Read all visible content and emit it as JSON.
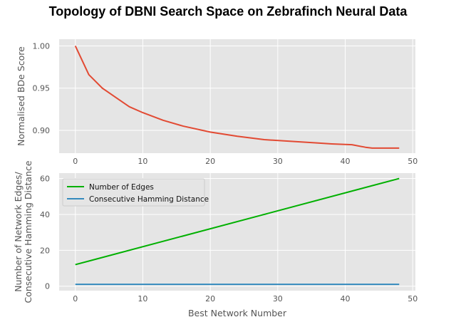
{
  "title": "Topology of DBNI Search Space on Zebrafinch Neural Data",
  "chart_data": [
    {
      "type": "line",
      "ylabel": "Normalised BDe Score",
      "xlabel": "",
      "xlim": [
        -2.4,
        50.4
      ],
      "ylim": [
        0.873,
        1.008
      ],
      "xticks": [
        0,
        10,
        20,
        30,
        40,
        50
      ],
      "yticks": [
        0.9,
        0.95,
        1.0
      ],
      "ytick_labels": [
        "0.90",
        "0.95",
        "1.00"
      ],
      "grid": true,
      "series": [
        {
          "color": "#e24a33",
          "x": [
            0,
            2,
            4,
            6,
            8,
            10,
            13,
            16,
            20,
            24,
            28,
            32,
            36,
            38,
            41,
            43,
            44,
            46,
            48
          ],
          "y": [
            1.0,
            0.966,
            0.95,
            0.939,
            0.928,
            0.921,
            0.912,
            0.905,
            0.898,
            0.893,
            0.889,
            0.887,
            0.885,
            0.884,
            0.883,
            0.88,
            0.879,
            0.879,
            0.879
          ]
        }
      ]
    },
    {
      "type": "line",
      "ylabel_lines": [
        "Number of Network Edges/",
        "Consecutive Hamming Distance"
      ],
      "xlabel": "Best Network Number",
      "xlim": [
        -2.4,
        50.4
      ],
      "ylim": [
        -2.5,
        63
      ],
      "xticks": [
        0,
        10,
        20,
        30,
        40,
        50
      ],
      "yticks": [
        0,
        20,
        40,
        60
      ],
      "grid": true,
      "legend_position": "upper-left",
      "series": [
        {
          "name": "Number of Edges",
          "color": "#00b000",
          "x": [
            0,
            48
          ],
          "y": [
            12,
            60
          ]
        },
        {
          "name": "Consecutive Hamming Distance",
          "color": "#348abd",
          "x": [
            0,
            48
          ],
          "y": [
            1,
            1
          ]
        }
      ]
    }
  ]
}
